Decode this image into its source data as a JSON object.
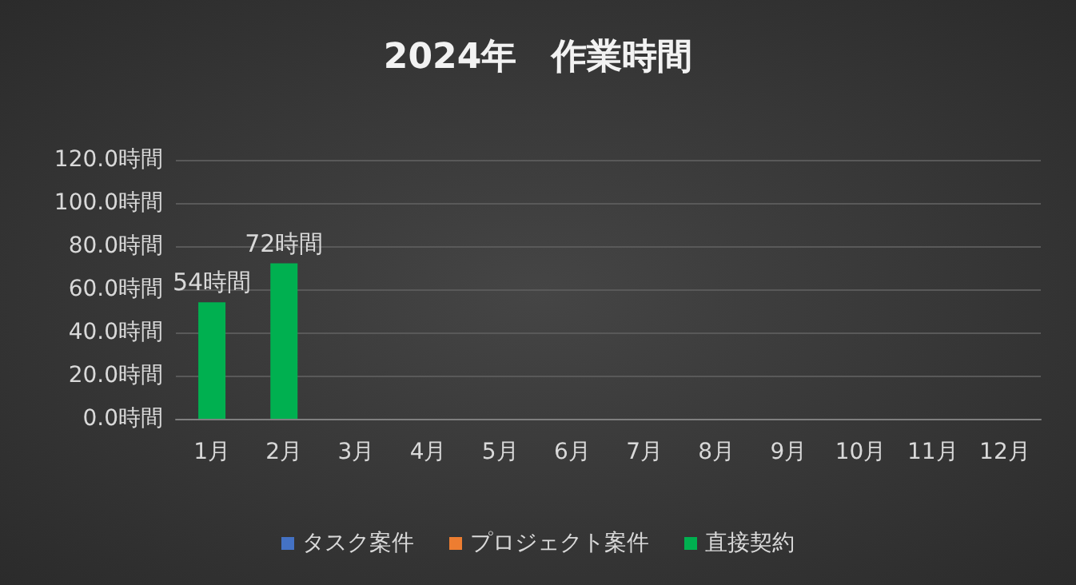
{
  "chart_data": {
    "type": "bar",
    "title": "2024年　作業時間",
    "stacked": true,
    "categories": [
      "1月",
      "2月",
      "3月",
      "4月",
      "5月",
      "6月",
      "7月",
      "8月",
      "9月",
      "10月",
      "11月",
      "12月"
    ],
    "series": [
      {
        "name": "タスク案件",
        "color": "#4472c4",
        "values": [
          null,
          null,
          null,
          null,
          null,
          null,
          null,
          null,
          null,
          null,
          null,
          null
        ]
      },
      {
        "name": "プロジェクト案件",
        "color": "#ed7d31",
        "values": [
          null,
          null,
          null,
          null,
          null,
          null,
          null,
          null,
          null,
          null,
          null,
          null
        ]
      },
      {
        "name": "直接契約",
        "color": "#00b050",
        "values": [
          54,
          72,
          null,
          null,
          null,
          null,
          null,
          null,
          null,
          null,
          null,
          null
        ],
        "value_labels": [
          "54時間",
          "72時間",
          null,
          null,
          null,
          null,
          null,
          null,
          null,
          null,
          null,
          null
        ]
      }
    ],
    "ylim": [
      0,
      120
    ],
    "yticks": [
      {
        "value": 0,
        "label": "0.0時間"
      },
      {
        "value": 20,
        "label": "20.0時間"
      },
      {
        "value": 40,
        "label": "40.0時間"
      },
      {
        "value": 60,
        "label": "60.0時間"
      },
      {
        "value": 80,
        "label": "80.0時間"
      },
      {
        "value": 100,
        "label": "100.0時間"
      },
      {
        "value": 120,
        "label": "120.0時間"
      }
    ],
    "grid": "y",
    "legend": "bottom"
  }
}
